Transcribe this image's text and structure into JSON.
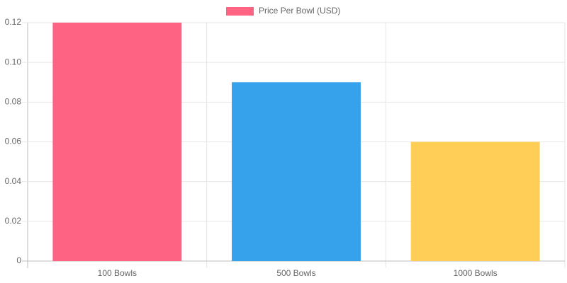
{
  "chart_data": {
    "type": "bar",
    "categories": [
      "100 Bowls",
      "500 Bowls",
      "1000 Bowls"
    ],
    "series": [
      {
        "name": "Price Per Bowl (USD)",
        "colors": [
          "#ff6384",
          "#36a2eb",
          "#ffce56"
        ],
        "values": [
          0.12,
          0.09,
          0.06
        ]
      }
    ],
    "ylim": [
      0,
      0.12
    ],
    "yticks": [
      0,
      0.02,
      0.04,
      0.06,
      0.08,
      {
        "value": 0.1,
        "label": "0.10"
      },
      0.12
    ],
    "grid": true,
    "legend": "top"
  }
}
